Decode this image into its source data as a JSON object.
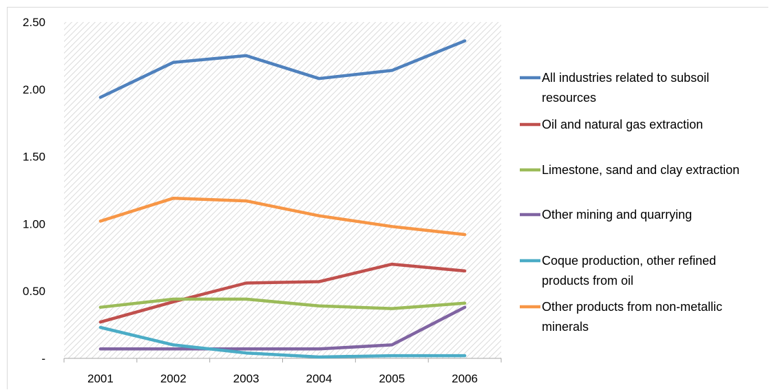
{
  "chart_data": {
    "type": "line",
    "title": "",
    "xlabel": "",
    "ylabel": "",
    "categories": [
      "2001",
      "2002",
      "2003",
      "2004",
      "2005",
      "2006"
    ],
    "ylim": [
      0,
      2.5
    ],
    "y_ticks": [
      {
        "value": 0,
        "label": "-"
      },
      {
        "value": 0.5,
        "label": "0.50"
      },
      {
        "value": 1.0,
        "label": "1.00"
      },
      {
        "value": 1.5,
        "label": "1.50"
      },
      {
        "value": 2.0,
        "label": "2.00"
      },
      {
        "value": 2.5,
        "label": "2.50"
      }
    ],
    "grid": false,
    "plot_background": "diagonal-hatch",
    "legend_position": "right",
    "series": [
      {
        "name": "All industries related to subsoil resources",
        "label_lines": [
          "All industries related to subsoil",
          "resources"
        ],
        "color": "#4f81bd",
        "values": [
          1.94,
          2.2,
          2.25,
          2.08,
          2.14,
          2.36
        ]
      },
      {
        "name": "Oil and natural gas extraction",
        "label_lines": [
          "Oil and natural gas extraction"
        ],
        "color": "#c0504d",
        "values": [
          0.27,
          0.42,
          0.56,
          0.57,
          0.7,
          0.65
        ]
      },
      {
        "name": "Limestone, sand and clay extraction",
        "label_lines": [
          "Limestone, sand and clay extraction"
        ],
        "color": "#9bbb59",
        "values": [
          0.38,
          0.44,
          0.44,
          0.39,
          0.37,
          0.41
        ]
      },
      {
        "name": "Other mining and quarrying",
        "label_lines": [
          "Other mining and quarrying"
        ],
        "color": "#8064a2",
        "values": [
          0.07,
          0.07,
          0.07,
          0.07,
          0.1,
          0.38
        ]
      },
      {
        "name": "Coque production, other refined products from oil",
        "label_lines": [
          "Coque production, other refined",
          "products from oil"
        ],
        "color": "#4bacc6",
        "values": [
          0.23,
          0.1,
          0.04,
          0.01,
          0.02,
          0.02
        ]
      },
      {
        "name": "Other products from non-metallic minerals",
        "label_lines": [
          "Other products from non-metallic",
          "minerals"
        ],
        "color": "#f79646",
        "values": [
          1.02,
          1.19,
          1.17,
          1.06,
          0.98,
          0.92
        ]
      }
    ]
  }
}
